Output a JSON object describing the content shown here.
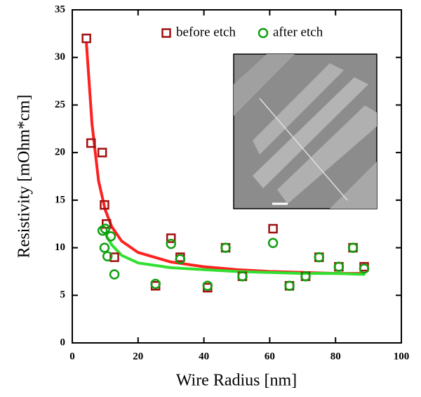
{
  "chart_data": {
    "type": "scatter",
    "xlabel": "Wire Radius [nm]",
    "ylabel": "Resistivity [mOhm*cm]",
    "xlim": [
      0,
      100
    ],
    "ylim": [
      0,
      35
    ],
    "xticks": [
      0,
      20,
      40,
      60,
      80,
      100
    ],
    "yticks": [
      0,
      5,
      10,
      15,
      20,
      25,
      30,
      35
    ],
    "legend": "upper right",
    "series": [
      {
        "name": "before etch",
        "color": "#a01010",
        "marker": "square",
        "x": [
          4.3,
          5.7,
          9.1,
          9.8,
          10.4,
          12.8,
          25.3,
          30,
          32.8,
          41.1,
          46.6,
          51.7,
          61,
          66,
          70.9,
          75,
          81,
          85.3,
          88.7
        ],
        "values": [
          32,
          21,
          20,
          14.5,
          12.5,
          9,
          6,
          11,
          9,
          5.8,
          10,
          7,
          12,
          6,
          7,
          9,
          8,
          10,
          8
        ]
      },
      {
        "name": "after etch",
        "color": "#10a010",
        "marker": "circle",
        "x": [
          10,
          11.7,
          9.2,
          9.8,
          10.7,
          12.8,
          25.3,
          30,
          32.8,
          41.1,
          46.6,
          51.7,
          61,
          66,
          70.9,
          75,
          81,
          85.3,
          88.7
        ],
        "values": [
          12,
          11.2,
          11.8,
          10,
          9.1,
          7.2,
          6.2,
          10.4,
          8.8,
          6,
          10,
          7,
          10.5,
          6,
          7,
          9,
          8,
          10,
          7.8
        ]
      }
    ],
    "fits": [
      {
        "color": "#ff2020",
        "x": [
          4.3,
          6,
          8,
          10,
          12,
          15,
          20,
          30,
          40,
          50,
          60,
          70,
          80,
          89
        ],
        "values": [
          31.5,
          23,
          17,
          14,
          12.2,
          10.7,
          9.5,
          8.5,
          8,
          7.7,
          7.5,
          7.4,
          7.3,
          7.3
        ]
      },
      {
        "color": "#30e030",
        "x": [
          10,
          12,
          15,
          20,
          30,
          40,
          50,
          60,
          70,
          80,
          89
        ],
        "values": [
          11.5,
          10.3,
          9.2,
          8.4,
          7.9,
          7.7,
          7.5,
          7.4,
          7.3,
          7.3,
          7.2
        ]
      }
    ]
  }
}
